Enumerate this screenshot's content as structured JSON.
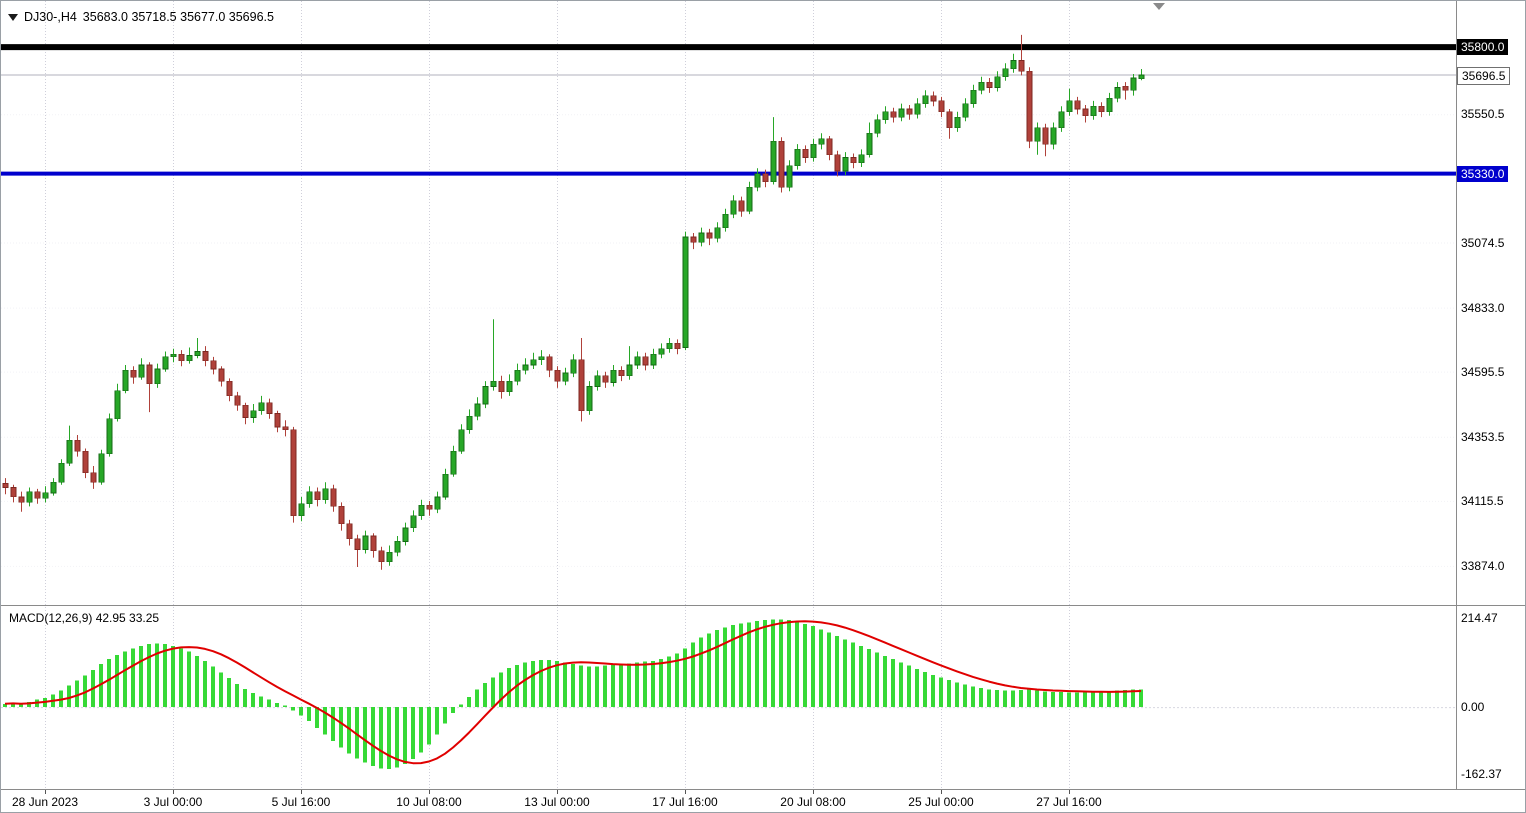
{
  "window": {
    "symbol_title": "DJ30-,H4",
    "ohlc_text": "35683.0 35718.5 35677.0 35696.5",
    "macd_label": "MACD(12,26,9) 42.95 33.25"
  },
  "colors": {
    "bull": "#27a727",
    "bull_dark": "#156815",
    "bear": "#b0413a",
    "bear_dark": "#7c2822",
    "macd": "#36d936",
    "signal": "#e00000",
    "level_black": "#000000",
    "level_blue": "#0000cd",
    "price_line": "#b0b0bc"
  },
  "levels": [
    {
      "name": "resistance-line",
      "price": 35800.0,
      "color": "#000000",
      "width": 6
    },
    {
      "name": "support-line",
      "price": 35330.0,
      "color": "#0000cd",
      "width": 4
    },
    {
      "name": "current-price-line",
      "price": 35696.5,
      "color": "#b0b0bc",
      "width": 1
    }
  ],
  "price_axis": {
    "labels": [
      {
        "text": "35550.5",
        "price": 35550.5
      },
      {
        "text": "35074.5",
        "price": 35074.5
      },
      {
        "text": "34833.0",
        "price": 34833.0
      },
      {
        "text": "34595.5",
        "price": 34595.5
      },
      {
        "text": "34353.5",
        "price": 34353.5
      },
      {
        "text": "34115.5",
        "price": 34115.5
      },
      {
        "text": "33874.0",
        "price": 33874.0
      }
    ],
    "badges": [
      {
        "text": "35800.0",
        "price": 35800.0,
        "bg": "#000000",
        "fg": "#ffffff"
      },
      {
        "text": "35696.5",
        "price": 35696.5,
        "bg": "#ffffff",
        "fg": "#000000",
        "border": "#707070"
      },
      {
        "text": "35330.0",
        "price": 35330.0,
        "bg": "#0000cd",
        "fg": "#ffffff"
      }
    ]
  },
  "macd_axis": {
    "labels": [
      {
        "text": "214.47",
        "value": 214.47
      },
      {
        "text": "0.00",
        "value": 0.0
      },
      {
        "text": "-162.37",
        "value": -162.37
      }
    ]
  },
  "time_axis": {
    "labels": [
      {
        "text": "28 Jun 2023",
        "i": 5
      },
      {
        "text": "3 Jul 00:00",
        "i": 21
      },
      {
        "text": "5 Jul 16:00",
        "i": 37
      },
      {
        "text": "10 Jul 08:00",
        "i": 53
      },
      {
        "text": "13 Jul 00:00",
        "i": 69
      },
      {
        "text": "17 Jul 16:00",
        "i": 85
      },
      {
        "text": "20 Jul 08:00",
        "i": 101
      },
      {
        "text": "25 Jul 00:00",
        "i": 117
      },
      {
        "text": "27 Jul 16:00",
        "i": 133
      }
    ]
  },
  "chart_data": {
    "type": "candlestick",
    "title": "DJ30-,H4",
    "symbol": "DJ30-",
    "timeframe": "H4",
    "last_ohlc": {
      "open": 35683.0,
      "high": 35718.5,
      "low": 35677.0,
      "close": 35696.5
    },
    "price_ylim": [
      33729,
      35971
    ],
    "x_tick_labels": [
      "28 Jun 2023",
      "3 Jul 00:00",
      "5 Jul 16:00",
      "10 Jul 08:00",
      "13 Jul 00:00",
      "17 Jul 16:00",
      "20 Jul 08:00",
      "25 Jul 00:00",
      "27 Jul 16:00"
    ],
    "candles": [
      [
        34180,
        34200,
        34140,
        34165
      ],
      [
        34165,
        34175,
        34110,
        34130
      ],
      [
        34130,
        34150,
        34075,
        34110
      ],
      [
        34110,
        34165,
        34095,
        34150
      ],
      [
        34150,
        34160,
        34105,
        34125
      ],
      [
        34125,
        34170,
        34110,
        34145
      ],
      [
        34145,
        34200,
        34135,
        34185
      ],
      [
        34185,
        34270,
        34175,
        34255
      ],
      [
        34255,
        34395,
        34245,
        34340
      ],
      [
        34340,
        34360,
        34280,
        34300
      ],
      [
        34300,
        34310,
        34200,
        34220
      ],
      [
        34220,
        34245,
        34160,
        34185
      ],
      [
        34185,
        34305,
        34175,
        34290
      ],
      [
        34290,
        34440,
        34280,
        34420
      ],
      [
        34420,
        34550,
        34410,
        34525
      ],
      [
        34525,
        34620,
        34515,
        34600
      ],
      [
        34600,
        34615,
        34550,
        34575
      ],
      [
        34575,
        34645,
        34565,
        34620
      ],
      [
        34620,
        34630,
        34445,
        34550
      ],
      [
        34550,
        34625,
        34535,
        34605
      ],
      [
        34605,
        34670,
        34595,
        34650
      ],
      [
        34650,
        34680,
        34630,
        34660
      ],
      [
        34660,
        34675,
        34615,
        34635
      ],
      [
        34635,
        34685,
        34625,
        34655
      ],
      [
        34655,
        34720,
        34645,
        34670
      ],
      [
        34670,
        34690,
        34615,
        34635
      ],
      [
        34635,
        34650,
        34585,
        34605
      ],
      [
        34605,
        34615,
        34540,
        34560
      ],
      [
        34560,
        34570,
        34485,
        34505
      ],
      [
        34505,
        34520,
        34450,
        34470
      ],
      [
        34470,
        34480,
        34400,
        34425
      ],
      [
        34425,
        34475,
        34405,
        34450
      ],
      [
        34450,
        34505,
        34435,
        34480
      ],
      [
        34480,
        34495,
        34420,
        34440
      ],
      [
        34440,
        34450,
        34370,
        34390
      ],
      [
        34390,
        34415,
        34355,
        34380
      ],
      [
        34380,
        34390,
        34035,
        34060
      ],
      [
        34060,
        34130,
        34040,
        34105
      ],
      [
        34105,
        34170,
        34090,
        34150
      ],
      [
        34150,
        34165,
        34095,
        34120
      ],
      [
        34120,
        34185,
        34105,
        34160
      ],
      [
        34160,
        34175,
        34075,
        34095
      ],
      [
        34095,
        34110,
        34005,
        34030
      ],
      [
        34030,
        34045,
        33950,
        33975
      ],
      [
        33975,
        33990,
        33870,
        33935
      ],
      [
        33935,
        34005,
        33920,
        33985
      ],
      [
        33985,
        33995,
        33905,
        33930
      ],
      [
        33930,
        33945,
        33860,
        33890
      ],
      [
        33890,
        33950,
        33875,
        33925
      ],
      [
        33925,
        33985,
        33910,
        33965
      ],
      [
        33965,
        34035,
        33950,
        34015
      ],
      [
        34015,
        34080,
        34000,
        34060
      ],
      [
        34060,
        34120,
        34045,
        34100
      ],
      [
        34100,
        34115,
        34060,
        34085
      ],
      [
        34085,
        34150,
        34070,
        34130
      ],
      [
        34130,
        34235,
        34120,
        34215
      ],
      [
        34215,
        34320,
        34205,
        34300
      ],
      [
        34300,
        34400,
        34290,
        34380
      ],
      [
        34380,
        34455,
        34365,
        34430
      ],
      [
        34430,
        34500,
        34415,
        34475
      ],
      [
        34475,
        34560,
        34460,
        34540
      ],
      [
        34540,
        34790,
        34525,
        34560
      ],
      [
        34560,
        34580,
        34495,
        34520
      ],
      [
        34520,
        34585,
        34505,
        34560
      ],
      [
        34560,
        34625,
        34545,
        34600
      ],
      [
        34600,
        34645,
        34585,
        34620
      ],
      [
        34620,
        34665,
        34605,
        34640
      ],
      [
        34640,
        34675,
        34620,
        34650
      ],
      [
        34650,
        34660,
        34575,
        34600
      ],
      [
        34600,
        34615,
        34535,
        34560
      ],
      [
        34560,
        34610,
        34545,
        34590
      ],
      [
        34590,
        34660,
        34575,
        34640
      ],
      [
        34640,
        34720,
        34410,
        34450
      ],
      [
        34450,
        34560,
        34435,
        34540
      ],
      [
        34540,
        34600,
        34525,
        34580
      ],
      [
        34580,
        34595,
        34535,
        34555
      ],
      [
        34555,
        34620,
        34540,
        34600
      ],
      [
        34600,
        34615,
        34560,
        34580
      ],
      [
        34580,
        34690,
        34565,
        34620
      ],
      [
        34620,
        34670,
        34605,
        34650
      ],
      [
        34650,
        34665,
        34600,
        34620
      ],
      [
        34620,
        34680,
        34605,
        34660
      ],
      [
        34660,
        34700,
        34645,
        34680
      ],
      [
        34680,
        34720,
        34665,
        34700
      ],
      [
        34700,
        34715,
        34660,
        34680
      ],
      [
        34685,
        35115,
        34675,
        35095
      ],
      [
        35095,
        35110,
        35050,
        35075
      ],
      [
        35075,
        35130,
        35060,
        35110
      ],
      [
        35110,
        35125,
        35065,
        35090
      ],
      [
        35090,
        35150,
        35075,
        35130
      ],
      [
        35130,
        35200,
        35115,
        35180
      ],
      [
        35180,
        35250,
        35165,
        35230
      ],
      [
        35230,
        35245,
        35170,
        35190
      ],
      [
        35190,
        35300,
        35180,
        35280
      ],
      [
        35280,
        35350,
        35265,
        35330
      ],
      [
        35330,
        35345,
        35280,
        35300
      ],
      [
        35300,
        35540,
        35290,
        35450
      ],
      [
        35450,
        35465,
        35260,
        35280
      ],
      [
        35280,
        35380,
        35265,
        35360
      ],
      [
        35360,
        35440,
        35345,
        35420
      ],
      [
        35420,
        35435,
        35370,
        35390
      ],
      [
        35390,
        35460,
        35375,
        35440
      ],
      [
        35440,
        35480,
        35420,
        35460
      ],
      [
        35460,
        35470,
        35380,
        35400
      ],
      [
        35400,
        35415,
        35320,
        35340
      ],
      [
        35340,
        35410,
        35325,
        35390
      ],
      [
        35390,
        35405,
        35350,
        35370
      ],
      [
        35370,
        35420,
        35355,
        35400
      ],
      [
        35400,
        35520,
        35390,
        35480
      ],
      [
        35480,
        35550,
        35465,
        35530
      ],
      [
        35530,
        35580,
        35515,
        35560
      ],
      [
        35560,
        35575,
        35520,
        35540
      ],
      [
        35540,
        35590,
        35525,
        35570
      ],
      [
        35570,
        35585,
        35530,
        35550
      ],
      [
        35550,
        35610,
        35535,
        35590
      ],
      [
        35590,
        35640,
        35575,
        35620
      ],
      [
        35620,
        35635,
        35580,
        35600
      ],
      [
        35600,
        35615,
        35540,
        35560
      ],
      [
        35560,
        35570,
        35460,
        35500
      ],
      [
        35500,
        35560,
        35485,
        35540
      ],
      [
        35540,
        35610,
        35525,
        35590
      ],
      [
        35590,
        35660,
        35575,
        35640
      ],
      [
        35640,
        35690,
        35625,
        35670
      ],
      [
        35670,
        35685,
        35630,
        35650
      ],
      [
        35650,
        35710,
        35635,
        35690
      ],
      [
        35690,
        35740,
        35675,
        35720
      ],
      [
        35720,
        35775,
        35705,
        35750
      ],
      [
        35750,
        35845,
        35695,
        35710
      ],
      [
        35710,
        35725,
        35425,
        35450
      ],
      [
        35450,
        35520,
        35400,
        35500
      ],
      [
        35500,
        35515,
        35395,
        35440
      ],
      [
        35440,
        35520,
        35420,
        35500
      ],
      [
        35500,
        35580,
        35485,
        35560
      ],
      [
        35560,
        35645,
        35545,
        35600
      ],
      [
        35600,
        35615,
        35550,
        35570
      ],
      [
        35570,
        35585,
        35520,
        35545
      ],
      [
        35545,
        35600,
        35530,
        35580
      ],
      [
        35580,
        35595,
        35540,
        35560
      ],
      [
        35560,
        35630,
        35545,
        35610
      ],
      [
        35610,
        35670,
        35595,
        35650
      ],
      [
        35655,
        35670,
        35605,
        35640
      ],
      [
        35640,
        35700,
        35620,
        35685
      ],
      [
        35683,
        35718.5,
        35677,
        35696.5
      ]
    ],
    "indicator": {
      "name": "MACD(12,26,9)",
      "macd_value": 42.95,
      "signal_value": 33.25,
      "ylim": [
        -198,
        242
      ],
      "y_tick_labels": [
        "214.47",
        "0.00",
        "-162.37"
      ],
      "histogram": [
        8,
        10,
        6,
        12,
        18,
        22,
        30,
        40,
        52,
        64,
        76,
        90,
        104,
        116,
        126,
        134,
        142,
        148,
        152,
        154,
        152,
        148,
        142,
        134,
        124,
        112,
        98,
        84,
        70,
        56,
        44,
        34,
        26,
        18,
        10,
        4,
        -8,
        -20,
        -34,
        -50,
        -66,
        -82,
        -98,
        -112,
        -124,
        -134,
        -142,
        -148,
        -150,
        -146,
        -138,
        -126,
        -110,
        -90,
        -66,
        -40,
        -14,
        6,
        24,
        42,
        58,
        72,
        84,
        94,
        102,
        108,
        112,
        114,
        114,
        112,
        108,
        104,
        100,
        98,
        98,
        100,
        102,
        104,
        106,
        108,
        110,
        112,
        116,
        122,
        130,
        142,
        156,
        168,
        178,
        186,
        192,
        198,
        202,
        205,
        208,
        210,
        212,
        212,
        210,
        206,
        201,
        196,
        188,
        180,
        172,
        164,
        156,
        148,
        140,
        132,
        124,
        116,
        108,
        100,
        92,
        85,
        78,
        72,
        66,
        60,
        55,
        50,
        46,
        43,
        41,
        40,
        40,
        41,
        42,
        40,
        38,
        37,
        36,
        35,
        35,
        36,
        37,
        38,
        39,
        40,
        41,
        42,
        42.95
      ]
    }
  }
}
